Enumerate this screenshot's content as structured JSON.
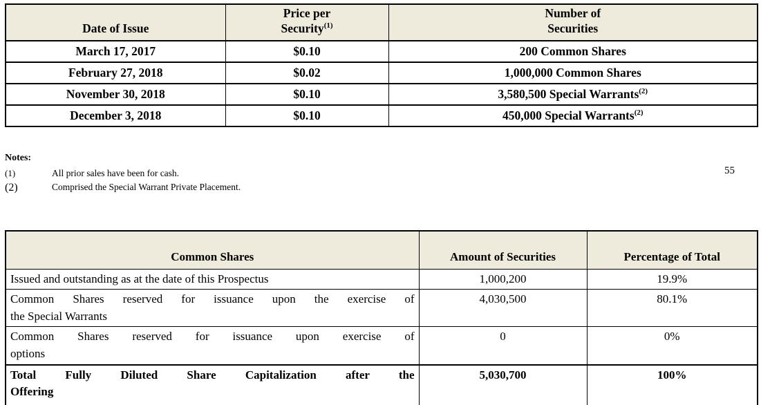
{
  "page": {
    "number": "55"
  },
  "colors": {
    "table_header_bg": "#eeeadc",
    "border": "#000000",
    "page_bg": "#ffffff",
    "text": "#000000"
  },
  "prior_sales_table": {
    "headers": {
      "date": "Date of Issue",
      "price_line1": "Price per",
      "price_line2": "Security",
      "price_note_ref": "(1)",
      "securities_line1": "Number of",
      "securities_line2": "Securities"
    },
    "rows": [
      {
        "date": "March 17, 2017",
        "price": "$0.10",
        "securities": "200 Common Shares",
        "note_ref": ""
      },
      {
        "date": "February 27, 2018",
        "price": "$0.02",
        "securities": "1,000,000 Common Shares",
        "note_ref": ""
      },
      {
        "date": "November 30, 2018",
        "price": "$0.10",
        "securities": "3,580,500 Special Warrants",
        "note_ref": "(2)"
      },
      {
        "date": "December 3, 2018",
        "price": "$0.10",
        "securities": "450,000 Special Warrants",
        "note_ref": "(2)"
      }
    ]
  },
  "notes": {
    "title": "Notes:",
    "items": [
      {
        "marker": "(1)",
        "text": "All prior sales have been for cash."
      },
      {
        "marker": "(2)",
        "text": "Comprised the Special Warrant Private Placement."
      }
    ]
  },
  "capitalization_table": {
    "headers": [
      "Common Shares",
      "Amount of Securities",
      "Percentage of Total"
    ],
    "rows": [
      {
        "label_lines": [
          "Issued and outstanding as at the date of this Prospectus"
        ],
        "amount": "1,000,200",
        "percent": "19.9%"
      },
      {
        "label_lines": [
          "Common Shares reserved for issuance upon the exercise of",
          "the Special Warrants"
        ],
        "amount": "4,030,500",
        "percent": "80.1%"
      },
      {
        "label_lines": [
          "Common Shares reserved for issuance upon exercise of",
          "options"
        ],
        "amount": "0",
        "percent": "0%"
      },
      {
        "label_lines": [
          "Total Fully Diluted Share Capitalization after the",
          "Offering"
        ],
        "amount": "5,030,700",
        "percent": "100%"
      }
    ]
  }
}
